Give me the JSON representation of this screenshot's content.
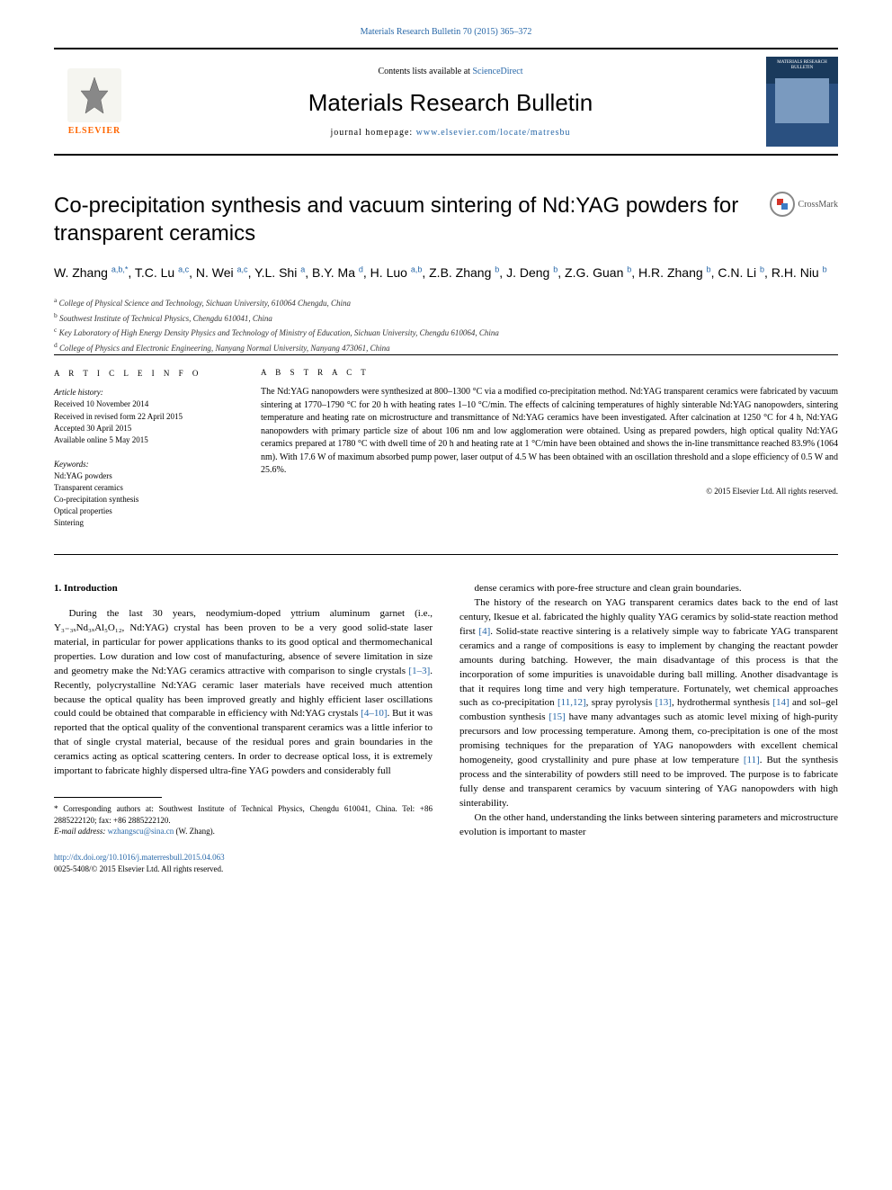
{
  "top_link": {
    "prefix": "",
    "text": "Materials Research Bulletin 70 (2015) 365–372"
  },
  "header": {
    "contents_prefix": "Contents lists available at ",
    "contents_link": "ScienceDirect",
    "journal_name": "Materials Research Bulletin",
    "homepage_prefix": "journal homepage: ",
    "homepage_url": "www.elsevier.com/locate/matresbu",
    "elsevier": "ELSEVIER",
    "cover_title": "MATERIALS RESEARCH BULLETIN"
  },
  "crossmark": "CrossMark",
  "title": "Co-precipitation synthesis and vacuum sintering of Nd:YAG powders for transparent ceramics",
  "authors_html": "W. Zhang <sup>a,b,*</sup>, T.C. Lu <sup>a,c</sup>, N. Wei <sup>a,c</sup>, Y.L. Shi <sup>a</sup>, B.Y. Ma <sup>d</sup>, H. Luo <sup>a,b</sup>, Z.B. Zhang <sup>b</sup>, J. Deng <sup>b</sup>, Z.G. Guan <sup>b</sup>, H.R. Zhang <sup>b</sup>, C.N. Li <sup>b</sup>, R.H. Niu <sup>b</sup>",
  "affiliations": [
    {
      "sup": "a",
      "text": "College of Physical Science and Technology, Sichuan University, 610064 Chengdu, China"
    },
    {
      "sup": "b",
      "text": "Southwest Institute of Technical Physics, Chengdu 610041, China"
    },
    {
      "sup": "c",
      "text": "Key Laboratory of High Energy Density Physics and Technology of Ministry of Education, Sichuan University, Chengdu 610064, China"
    },
    {
      "sup": "d",
      "text": "College of Physics and Electronic Engineering, Nanyang Normal University, Nanyang 473061, China"
    }
  ],
  "article_info": {
    "heading": "A R T I C L E  I N F O",
    "history_label": "Article history:",
    "history": [
      "Received 10 November 2014",
      "Received in revised form 22 April 2015",
      "Accepted 30 April 2015",
      "Available online 5 May 2015"
    ],
    "keywords_label": "Keywords:",
    "keywords": [
      "Nd:YAG powders",
      "Transparent ceramics",
      "Co-precipitation synthesis",
      "Optical properties",
      "Sintering"
    ]
  },
  "abstract": {
    "heading": "A B S T R A C T",
    "text": "The Nd:YAG nanopowders were synthesized at 800–1300 °C via a modified co-precipitation method. Nd:YAG transparent ceramics were fabricated by vacuum sintering at 1770–1790 °C for 20 h with heating rates 1–10 °C/min. The effects of calcining temperatures of highly sinterable Nd:YAG nanopowders, sintering temperature and heating rate on microstructure and transmittance of Nd:YAG ceramics have been investigated. After calcination at 1250 °C for 4 h, Nd:YAG nanopowders with primary particle size of about 106 nm and low agglomeration were obtained. Using as prepared powders, high optical quality Nd:YAG ceramics prepared at 1780 °C with dwell time of 20 h and heating rate at 1 °C/min have been obtained and shows the in-line transmittance reached 83.9% (1064 nm). With 17.6 W of maximum absorbed pump power, laser output of 4.5 W has been obtained with an oscillation threshold and a slope efficiency of 0.5 W and 25.6%.",
    "copyright": "© 2015 Elsevier Ltd. All rights reserved."
  },
  "body": {
    "section_heading": "1. Introduction",
    "col1_paras": [
      "During the last 30 years, neodymium-doped yttrium aluminum garnet (i.e., Y₃₋₃ₓNd₃ₓAl₅O₁₂, Nd:YAG) crystal has been proven to be a very good solid-state laser material, in particular for power applications thanks to its good optical and thermomechanical properties. Low duration and low cost of manufacturing, absence of severe limitation in size and geometry make the Nd:YAG ceramics attractive with comparison to single crystals <span class=\"ref-link\">[1–3]</span>. Recently, polycrystalline Nd:YAG ceramic laser materials have received much attention because the optical quality has been improved greatly and highly efficient laser oscillations could could be obtained that comparable in efficiency with Nd:YAG crystals <span class=\"ref-link\">[4–10]</span>. But it was reported that the optical quality of the conventional transparent ceramics was a little inferior to that of single crystal material, because of the residual pores and grain boundaries in the ceramics acting as optical scattering centers. In order to decrease optical loss, it is extremely important to fabricate highly dispersed ultra-fine YAG powders and considerably full"
    ],
    "col2_paras": [
      "dense ceramics with pore-free structure and clean grain boundaries.",
      "The history of the research on YAG transparent ceramics dates back to the end of last century, Ikesue et al. fabricated the highly quality YAG ceramics by solid-state reaction method first <span class=\"ref-link\">[4]</span>. Solid-state reactive sintering is a relatively simple way to fabricate YAG transparent ceramics and a range of compositions is easy to implement by changing the reactant powder amounts during batching. However, the main disadvantage of this process is that the incorporation of some impurities is unavoidable during ball milling. Another disadvantage is that it requires long time and very high temperature. Fortunately, wet chemical approaches such as co-precipitation <span class=\"ref-link\">[11,12]</span>, spray pyrolysis <span class=\"ref-link\">[13]</span>, hydrothermal synthesis <span class=\"ref-link\">[14]</span> and sol–gel combustion synthesis <span class=\"ref-link\">[15]</span> have many advantages such as atomic level mixing of high-purity precursors and low processing temperature. Among them, co-precipitation is one of the most promising techniques for the preparation of YAG nanopowders with excellent chemical homogeneity, good crystallinity and pure phase at low temperature <span class=\"ref-link\">[11]</span>. But the synthesis process and the sinterability of powders still need to be improved. The purpose is to fabricate fully dense and transparent ceramics by vacuum sintering of YAG nanopowders with high sinterability.",
      "On the other hand, understanding the links between sintering parameters and microstructure evolution is important to master"
    ]
  },
  "footnote": {
    "marker": "*",
    "text": "Corresponding authors at: Southwest Institute of Technical Physics, Chengdu 610041, China. Tel: +86 2885222120; fax: +86 2885222120.",
    "email_label": "E-mail address:",
    "email": "wzhangscu@sina.cn",
    "email_suffix": "(W. Zhang)."
  },
  "doi": {
    "url": "http://dx.doi.org/10.1016/j.materresbull.2015.04.063",
    "issn_copy": "0025-5408/© 2015 Elsevier Ltd. All rights reserved."
  },
  "colors": {
    "link": "#2767a8",
    "elsevier_orange": "#ff6600",
    "text": "#000000",
    "cover_dark": "#1a3a5c",
    "cover_mid": "#2a5080"
  },
  "typography": {
    "body_fontsize": 11,
    "title_fontsize": 24,
    "journal_fontsize": 26,
    "abstract_fontsize": 10,
    "info_fontsize": 9
  }
}
